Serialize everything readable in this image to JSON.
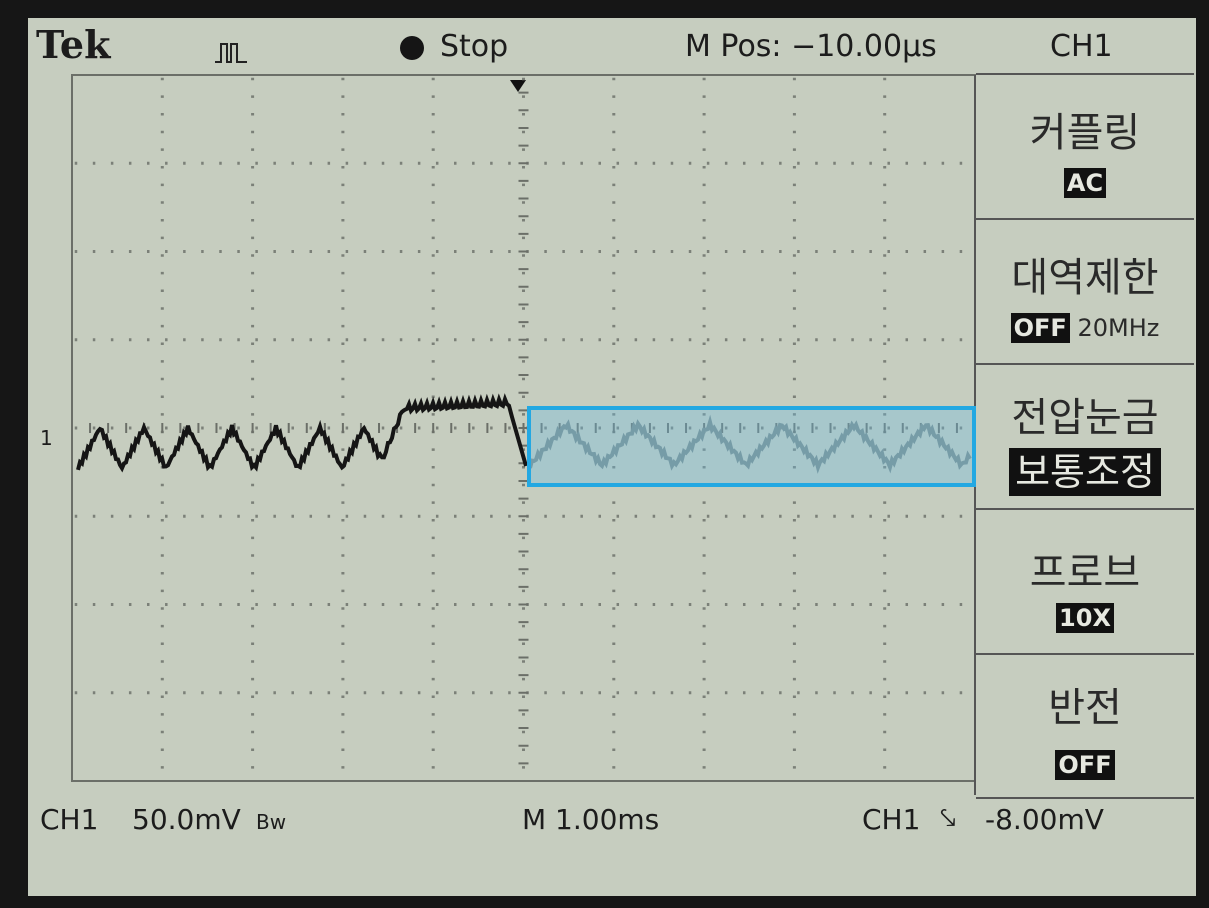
{
  "header": {
    "brand": "Tek",
    "status": "Stop",
    "position": "M Pos: −10.00µs",
    "channel": "CH1"
  },
  "marker": "1",
  "menu": [
    {
      "label": "커플링",
      "value": "AC"
    },
    {
      "label": "대역제한",
      "value": "OFF",
      "extra": "20MHz"
    },
    {
      "label": "전압눈금",
      "value": "보통조정"
    },
    {
      "label": "프로브",
      "value": "10X"
    },
    {
      "label": "반전",
      "value": "OFF"
    }
  ],
  "footer": {
    "channel": "CH1",
    "scale": "50.0mV",
    "bandwidth": "Bw",
    "timebase": "M 1.00ms",
    "trigger_channel": "CH1",
    "trigger_level": "-8.00mV"
  }
}
